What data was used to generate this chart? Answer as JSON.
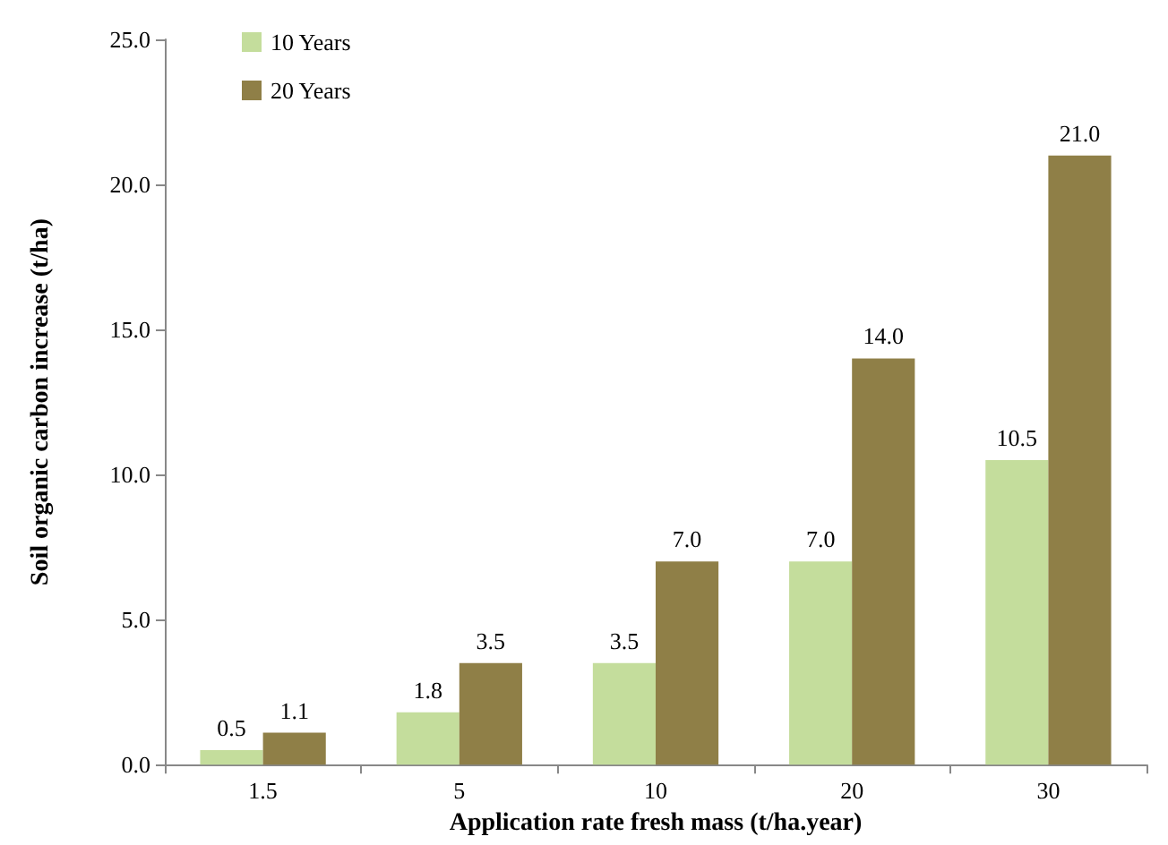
{
  "chart_data": {
    "type": "bar",
    "xlabel": "Application rate fresh mass (t/ha.year)",
    "ylabel": "Soil organic carbon increase (t/ha)",
    "categories": [
      "1.5",
      "5",
      "10",
      "20",
      "30"
    ],
    "series": [
      {
        "name": "10 Years",
        "color": "#c4dd9c",
        "values": [
          0.5,
          1.8,
          3.5,
          7.0,
          10.5
        ],
        "value_labels": [
          "0.5",
          "1.8",
          "3.5",
          "7.0",
          "10.5"
        ]
      },
      {
        "name": "20 Years",
        "color": "#8f7f47",
        "values": [
          1.1,
          3.5,
          7.0,
          14.0,
          21.0
        ],
        "value_labels": [
          "1.1",
          "3.5",
          "7.0",
          "14.0",
          "21.0"
        ]
      }
    ],
    "ylim": [
      0,
      25
    ],
    "yticks": [
      {
        "value": 0,
        "label": "0.0"
      },
      {
        "value": 5,
        "label": "5.0"
      },
      {
        "value": 10,
        "label": "10.0"
      },
      {
        "value": 15,
        "label": "15.0"
      },
      {
        "value": 20,
        "label": "20.0"
      },
      {
        "value": 25,
        "label": "25.0"
      }
    ],
    "grid": false,
    "legend": "top left"
  }
}
